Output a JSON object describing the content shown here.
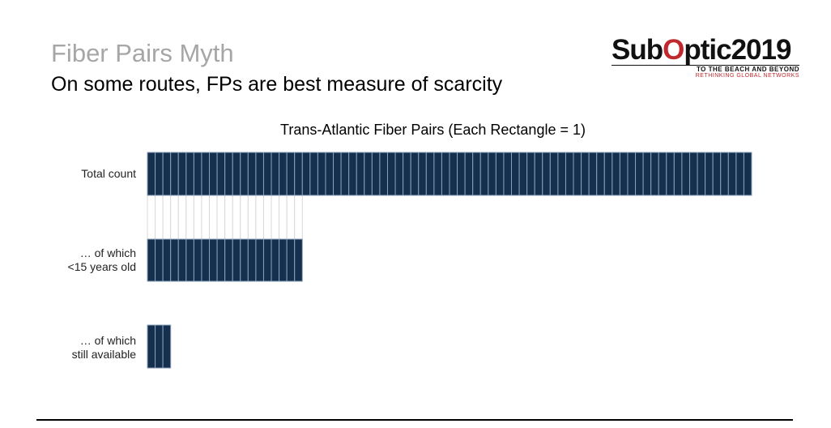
{
  "slide": {
    "title": "Fiber Pairs Myth",
    "subtitle": "On some routes, FPs are best measure of scarcity"
  },
  "logo": {
    "name": "SubOptic2019",
    "prefix": "Sub",
    "highlight": "O",
    "suffix": "ptic2019",
    "tagline": "TO THE BEACH AND BEYOND",
    "tagline2": "RETHINKING GLOBAL NETWORKS"
  },
  "chart_data": {
    "type": "bar",
    "orientation": "horizontal",
    "title": "Trans-Atlantic Fiber Pairs (Each Rectangle = 1)",
    "categories": [
      "Total count",
      "… of which <15 years old",
      "… of which still available"
    ],
    "category_lines": [
      [
        "Total count"
      ],
      [
        "… of which",
        "<15 years old"
      ],
      [
        "… of which",
        "still available"
      ]
    ],
    "values": [
      78,
      20,
      3
    ],
    "bar_color": "#15304f",
    "ghost_color": "#d9d9d9",
    "grid": false,
    "legend": "none"
  }
}
